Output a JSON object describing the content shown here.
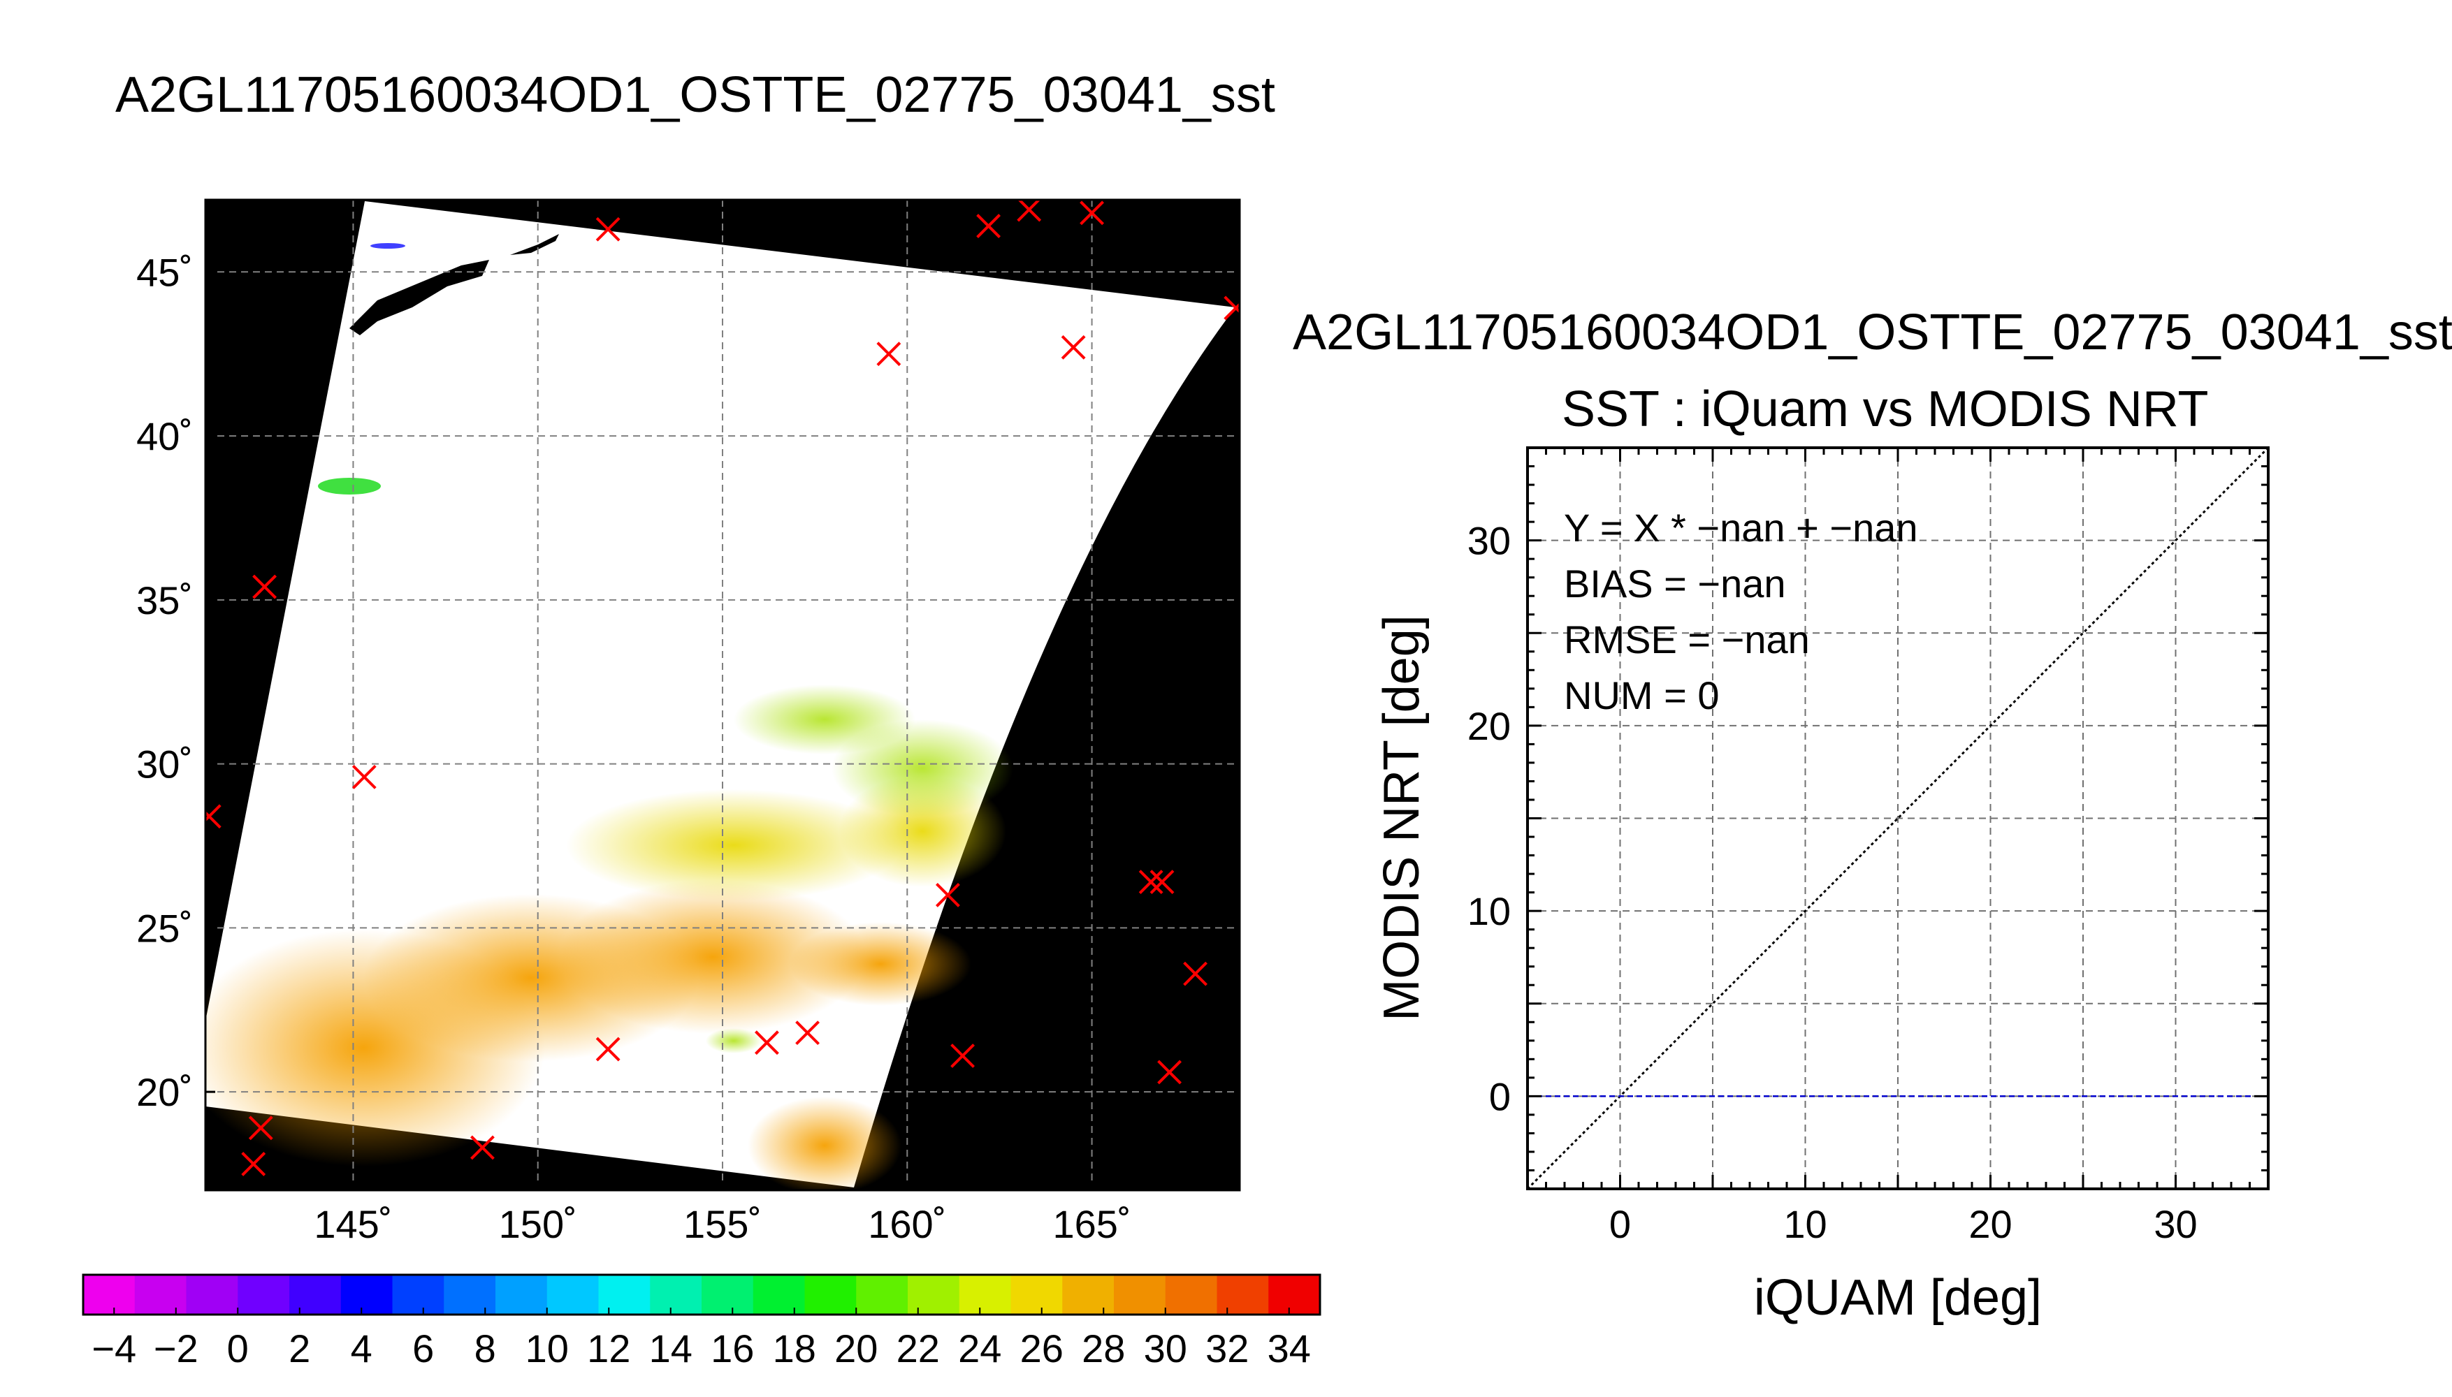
{
  "map_title": "A2GL11705160034OD1_OSTTE_02775_03041_sst",
  "scatter_file_title": "A2GL11705160034OD1_OSTTE_02775_03041_sst",
  "chart_data": [
    {
      "type": "heatmap",
      "title": "A2GL11705160034OD1_OSTTE_02775_03041_sst",
      "x_ticks": [
        "145˚",
        "150˚",
        "155˚",
        "160˚",
        "165˚"
      ],
      "x_tick_values": [
        145,
        150,
        155,
        160,
        165
      ],
      "y_ticks": [
        "20˚",
        "25˚",
        "30˚",
        "35˚",
        "40˚",
        "45˚"
      ],
      "y_tick_values": [
        20,
        25,
        30,
        35,
        40,
        45
      ],
      "xlim": [
        141,
        169
      ],
      "ylim": [
        17,
        47.2
      ],
      "grid": true,
      "colorbar": {
        "min": -5,
        "max": 35,
        "tick_labels": [
          "−4",
          "−2",
          "0",
          "2",
          "4",
          "6",
          "8",
          "10",
          "12",
          "14",
          "16",
          "18",
          "20",
          "22",
          "24",
          "26",
          "28",
          "30",
          "32",
          "34"
        ],
        "tick_values": [
          -4,
          -2,
          0,
          2,
          4,
          6,
          8,
          10,
          12,
          14,
          16,
          18,
          20,
          22,
          24,
          26,
          28,
          30,
          32,
          34
        ],
        "colors": [
          "#ee00ee",
          "#c800f0",
          "#a000f5",
          "#7000ff",
          "#4000ff",
          "#0000ff",
          "#0040ff",
          "#0070ff",
          "#00a0ff",
          "#00c8ff",
          "#00f0f0",
          "#00f0b0",
          "#00f070",
          "#00f030",
          "#20f000",
          "#60f000",
          "#a0f000",
          "#d8f000",
          "#f0d800",
          "#f0b000",
          "#f09000",
          "#f07000",
          "#f04000",
          "#f00000"
        ]
      },
      "buoy_points": [
        {
          "lon": 151.9,
          "lat": 46.3
        },
        {
          "lon": 162.2,
          "lat": 46.4
        },
        {
          "lon": 163.3,
          "lat": 46.9
        },
        {
          "lon": 165.0,
          "lat": 46.8
        },
        {
          "lon": 168.9,
          "lat": 43.9
        },
        {
          "lon": 159.5,
          "lat": 42.5
        },
        {
          "lon": 164.5,
          "lat": 42.7
        },
        {
          "lon": 142.6,
          "lat": 35.4
        },
        {
          "lon": 145.3,
          "lat": 29.6
        },
        {
          "lon": 141.1,
          "lat": 28.4
        },
        {
          "lon": 161.1,
          "lat": 26.0
        },
        {
          "lon": 166.6,
          "lat": 26.4
        },
        {
          "lon": 166.9,
          "lat": 26.4
        },
        {
          "lon": 167.8,
          "lat": 23.6
        },
        {
          "lon": 167.1,
          "lat": 20.6
        },
        {
          "lon": 161.5,
          "lat": 21.1
        },
        {
          "lon": 156.2,
          "lat": 21.5
        },
        {
          "lon": 157.3,
          "lat": 21.8
        },
        {
          "lon": 151.9,
          "lat": 21.3
        },
        {
          "lon": 148.5,
          "lat": 18.3
        },
        {
          "lon": 142.5,
          "lat": 18.9
        },
        {
          "lon": 142.3,
          "lat": 17.8
        }
      ],
      "colors": {
        "background": "#000000",
        "swath": "#ffffff",
        "marker": "#ff0000",
        "grid": "#808080"
      }
    },
    {
      "type": "scatter",
      "title": "SST : iQuam vs MODIS NRT",
      "xlabel": "iQUAM [deg]",
      "ylabel": "MODIS NRT [deg]",
      "xlim": [
        -5,
        35
      ],
      "ylim": [
        -5,
        35
      ],
      "x_ticks": [
        0,
        10,
        20,
        30
      ],
      "y_ticks": [
        0,
        10,
        20,
        30
      ],
      "grid": true,
      "annotations": [
        "Y = X * −nan + −nan",
        "BIAS = −nan",
        "RMSE = −nan",
        "NUM = 0"
      ],
      "series": [],
      "reference_lines": [
        {
          "kind": "identity",
          "x": [
            -5,
            35
          ],
          "y": [
            -5,
            35
          ],
          "style": "dotted",
          "color": "#000000"
        },
        {
          "kind": "zero",
          "x": [
            -5,
            35
          ],
          "y": [
            0,
            0
          ],
          "style": "dashed",
          "color": "#0000cc"
        }
      ]
    }
  ]
}
